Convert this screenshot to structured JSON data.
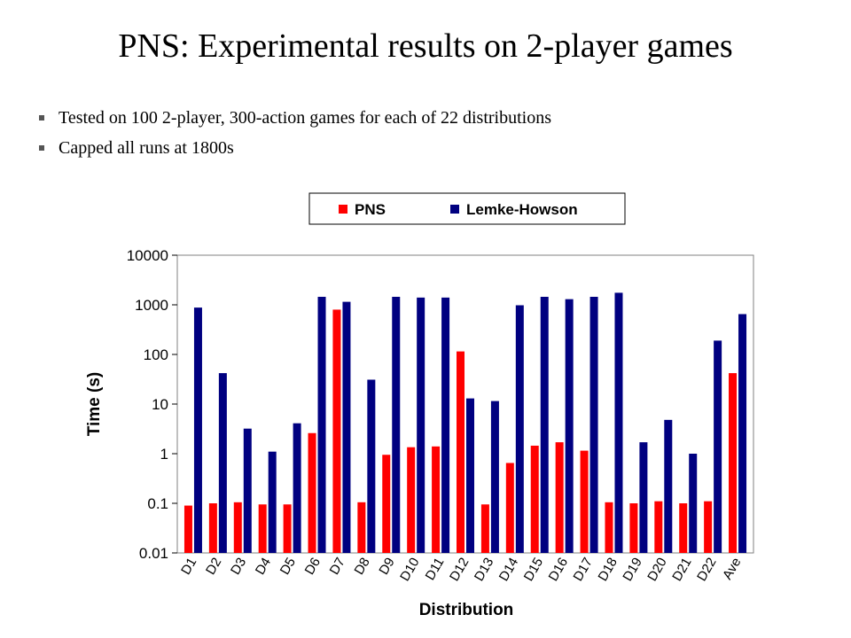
{
  "slide": {
    "title": "PNS: Experimental results on 2-player games",
    "bullets": [
      "Tested on 100  2-player, 300-action games for each of 22 distributions",
      "Capped all runs at 1800s"
    ]
  },
  "chart_data": {
    "type": "bar",
    "scale": "log",
    "xlabel": "Distribution",
    "ylabel": "Time (s)",
    "ylim": [
      0.01,
      10000
    ],
    "yticks": [
      {
        "value": 0.01,
        "label": "0.01"
      },
      {
        "value": 0.1,
        "label": "0.1"
      },
      {
        "value": 1,
        "label": "1"
      },
      {
        "value": 10,
        "label": "10"
      },
      {
        "value": 100,
        "label": "100"
      },
      {
        "value": 1000,
        "label": "1000"
      },
      {
        "value": 10000,
        "label": "10000"
      }
    ],
    "grid": false,
    "legend_position": "top",
    "categories": [
      "D1",
      "D2",
      "D3",
      "D4",
      "D5",
      "D6",
      "D7",
      "D8",
      "D9",
      "D10",
      "D11",
      "D12",
      "D13",
      "D14",
      "D15",
      "D16",
      "D17",
      "D18",
      "D19",
      "D20",
      "D21",
      "D22",
      "Ave"
    ],
    "series": [
      {
        "name": "PNS",
        "color": "#ff0000",
        "values": [
          0.09,
          0.1,
          0.105,
          0.095,
          0.095,
          2.6,
          800,
          0.105,
          0.95,
          1.35,
          1.4,
          115,
          0.095,
          0.65,
          1.45,
          1.7,
          1.15,
          0.105,
          0.1,
          0.11,
          0.1,
          0.11,
          42
        ]
      },
      {
        "name": "Lemke-Howson",
        "color": "#000080",
        "values": [
          880,
          42,
          3.2,
          1.1,
          4.1,
          1450,
          1150,
          31,
          1450,
          1400,
          1400,
          13,
          11.5,
          980,
          1450,
          1300,
          1450,
          1750,
          1.7,
          4.8,
          1.0,
          190,
          650
        ]
      }
    ]
  },
  "icons": {
    "bullet": "square-bullet-icon"
  }
}
